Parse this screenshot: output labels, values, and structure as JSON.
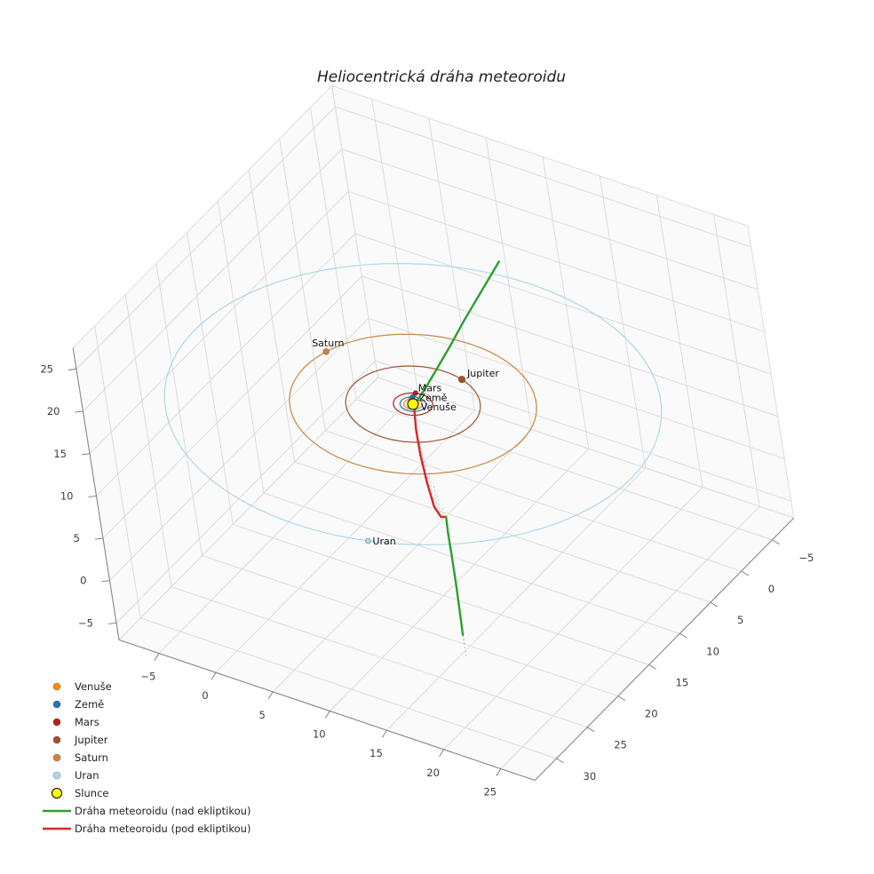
{
  "title": "Heliocentrická dráha meteoroidu",
  "chart_data": {
    "type": "line",
    "projection": "3d",
    "title": "Heliocentrická dráha meteoroidu",
    "grid": true,
    "axes": {
      "x": {
        "ticks": [
          "−5",
          "0",
          "5",
          "10",
          "15",
          "20",
          "25"
        ],
        "values": [
          -5,
          0,
          5,
          10,
          15,
          20,
          25
        ],
        "range": [
          -8.5,
          28
        ]
      },
      "y": {
        "ticks": [
          "−5",
          "0",
          "5",
          "10",
          "15",
          "20",
          "25",
          "30"
        ],
        "values": [
          -5,
          0,
          5,
          10,
          15,
          20,
          25,
          30
        ],
        "range": [
          -8.5,
          33.5
        ]
      },
      "z": {
        "ticks": [
          "−5",
          "0",
          "5",
          "10",
          "15",
          "20",
          "25"
        ],
        "values": [
          -5,
          0,
          5,
          10,
          15,
          20,
          25
        ],
        "range": [
          -7,
          27.5
        ]
      }
    },
    "sun": {
      "label": "Slunce",
      "slug": "slunce",
      "position": [
        0,
        0,
        0
      ],
      "color": "#FFFF00",
      "edge_color": "#000000"
    },
    "orbits": [
      {
        "name": "Venuše",
        "slug": "venuse",
        "radius_au": 0.72,
        "color": "#FF8C00"
      },
      {
        "name": "Země",
        "slug": "zeme",
        "radius_au": 1.0,
        "color": "#1f77b4"
      },
      {
        "name": "Mars",
        "slug": "mars",
        "radius_au": 1.52,
        "color": "#B22222"
      },
      {
        "name": "Jupiter",
        "slug": "jupiter",
        "radius_au": 5.2,
        "color": "#A0522D"
      },
      {
        "name": "Saturn",
        "slug": "saturn",
        "radius_au": 9.54,
        "color": "#CD853F"
      },
      {
        "name": "Uran",
        "slug": "uran",
        "radius_au": 19.19,
        "color": "#ADD8E6"
      }
    ],
    "planets": [
      {
        "name": "Venuše",
        "slug": "venuse",
        "position": [
          -0.46,
          -0.55,
          0
        ],
        "color": "#FF8C00",
        "size": 2.8,
        "label_offset": [
          11,
          13
        ]
      },
      {
        "name": "Země",
        "slug": "zeme",
        "position": [
          -0.5,
          -0.87,
          0
        ],
        "color": "#1f77b4",
        "size": 2.8,
        "label_offset": [
          7,
          5
        ]
      },
      {
        "name": "Mars",
        "slug": "mars",
        "position": [
          -0.55,
          -1.42,
          0
        ],
        "color": "#B22222",
        "size": 2.8,
        "label_offset": [
          3,
          -2
        ]
      },
      {
        "name": "Jupiter",
        "slug": "jupiter",
        "position": [
          1.61,
          -4.95,
          0
        ],
        "color": "#A0522D",
        "size": 3.8,
        "label_offset": [
          6,
          -3
        ]
      },
      {
        "name": "Saturn",
        "slug": "saturn",
        "position": [
          -9.13,
          -2.79,
          0
        ],
        "color": "#CD853F",
        "size": 3.4,
        "label_offset": [
          -16,
          -6
        ]
      },
      {
        "name": "Uran",
        "slug": "uran",
        "position": [
          5.93,
          18.26,
          0
        ],
        "color": "#ADD8E6",
        "size": 3.0,
        "label_offset": [
          5,
          4
        ]
      }
    ],
    "trajectory": {
      "above_color": "#2ca02c",
      "below_color": "#d62728",
      "segments": [
        {
          "kind": "above",
          "color": "#2ca02c",
          "points": [
            [
              6.6,
              -5.2,
              16
            ],
            [
              5.2,
              -4.2,
              12.6
            ],
            [
              3.9,
              -3.2,
              9.4
            ],
            [
              2.8,
              -2.3,
              6.5
            ],
            [
              1.8,
              -1.5,
              4.0
            ],
            [
              1.0,
              -0.8,
              2.0
            ],
            [
              0.45,
              -0.2,
              0.7
            ],
            [
              0.2,
              0.2,
              0
            ]
          ]
        },
        {
          "kind": "below",
          "color": "#d62728",
          "points": [
            [
              0.2,
              0.2,
              0
            ],
            [
              0.9,
              1.5,
              -1.5
            ],
            [
              2.0,
              3.1,
              -2.8
            ],
            [
              3.6,
              5.2,
              -3.8
            ],
            [
              5.5,
              7.6,
              -4.0
            ],
            [
              7.5,
              9.9,
              -2.6
            ],
            [
              9.5,
              12.2,
              0
            ]
          ]
        },
        {
          "kind": "above",
          "color": "#2ca02c",
          "points": [
            [
              9.5,
              12.2,
              0
            ],
            [
              11.5,
              15.3,
              1.4
            ],
            [
              13.7,
              18.6,
              2.1
            ],
            [
              16.0,
              22.1,
              2.5
            ],
            [
              18.2,
              25.5,
              2.7
            ],
            [
              20.0,
              28.3,
              2.7
            ]
          ]
        }
      ],
      "stems": {
        "color": "#aaaaaa",
        "points": [
          [
            1.0,
            -0.8,
            2.0
          ],
          [
            0.45,
            -0.2,
            0.7
          ],
          [
            0.9,
            1.5,
            -1.5
          ],
          [
            1.4,
            2.3,
            -2.2
          ],
          [
            2.0,
            3.1,
            -2.8
          ],
          [
            2.8,
            4.1,
            -3.3
          ],
          [
            3.6,
            5.2,
            -3.8
          ],
          [
            4.5,
            6.4,
            -3.9
          ],
          [
            5.5,
            7.6,
            -4.0
          ],
          [
            6.5,
            8.7,
            -3.3
          ],
          [
            7.5,
            9.9,
            -2.6
          ],
          [
            8.5,
            11.0,
            -1.4
          ],
          [
            10.5,
            13.7,
            0.8
          ],
          [
            11.5,
            15.3,
            1.4
          ],
          [
            12.6,
            16.9,
            1.8
          ],
          [
            13.7,
            18.6,
            2.1
          ],
          [
            14.8,
            20.3,
            2.3
          ],
          [
            16.0,
            22.1,
            2.5
          ],
          [
            17.1,
            23.8,
            2.6
          ],
          [
            18.2,
            25.5,
            2.7
          ],
          [
            19.1,
            26.9,
            2.7
          ],
          [
            20.0,
            28.3,
            2.7
          ]
        ]
      }
    }
  },
  "legend": {
    "items": [
      {
        "type": "marker",
        "slug": "venuse",
        "label": "Venuše",
        "color": "#FF8C00"
      },
      {
        "type": "marker",
        "slug": "zeme",
        "label": "Země",
        "color": "#1f77b4"
      },
      {
        "type": "marker",
        "slug": "mars",
        "label": "Mars",
        "color": "#B22222"
      },
      {
        "type": "marker",
        "slug": "jupiter",
        "label": "Jupiter",
        "color": "#A0522D"
      },
      {
        "type": "marker",
        "slug": "saturn",
        "label": "Saturn",
        "color": "#CD853F"
      },
      {
        "type": "marker",
        "slug": "uran",
        "label": "Uran",
        "color": "#ADD8E6"
      },
      {
        "type": "marker",
        "slug": "slunce",
        "label": "Slunce",
        "color": "#FFFF00",
        "edge": "#000000",
        "size": 5.5
      },
      {
        "type": "line",
        "slug": "traj-above",
        "label": "Dráha meteoroidu (nad ekliptikou)",
        "color": "#2ca02c"
      },
      {
        "type": "line",
        "slug": "traj-below",
        "label": "Dráha meteoroidu (pod ekliptikou)",
        "color": "#d62728"
      }
    ]
  }
}
